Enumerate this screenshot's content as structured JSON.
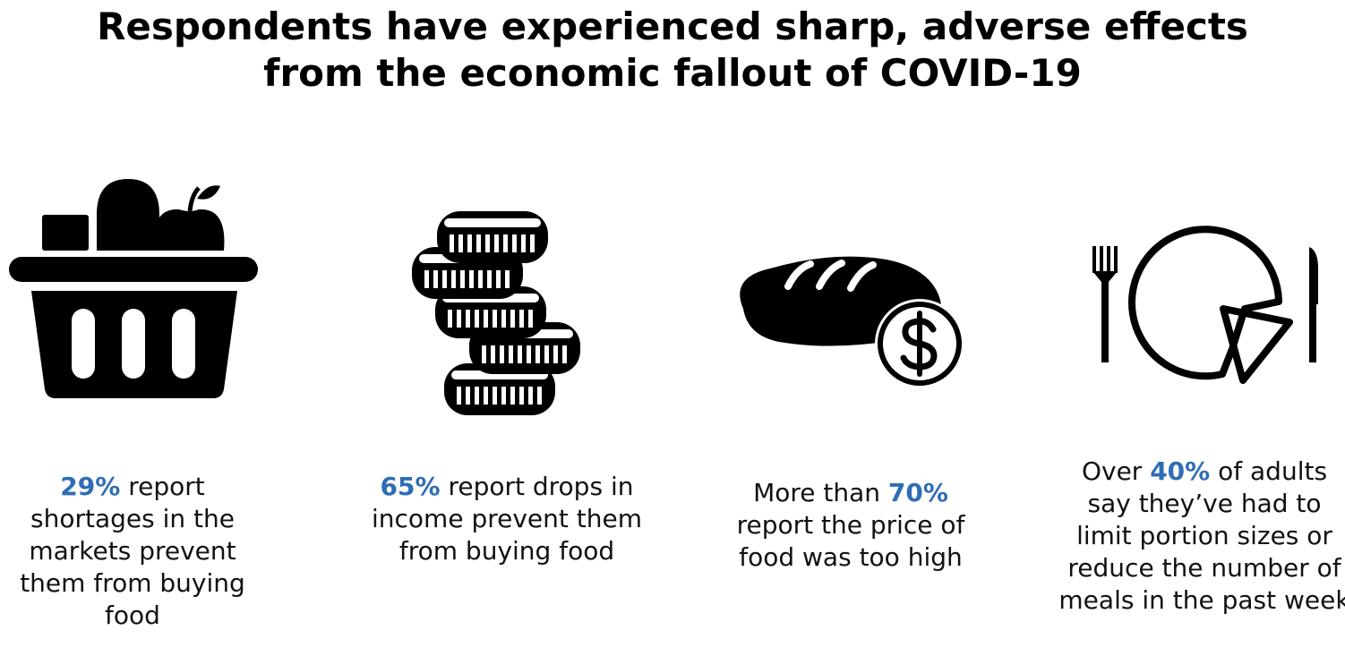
{
  "title": [
    "Respondents have experienced sharp, adverse effects",
    "from the economic fallout of COVID-19"
  ],
  "items": [
    {
      "highlight": "29%",
      "after": " report shortages in the markets prevent them from buying food"
    },
    {
      "highlight": "65%",
      "after": " report drops in income prevent them from buying food"
    },
    {
      "before": "More than ",
      "highlight": "70%",
      "after": " report the price of food was too high"
    },
    {
      "before": "Over ",
      "highlight": "40%",
      "after": " of adults say they’ve had to limit portion sizes or reduce the number of meals in the past week"
    }
  ]
}
